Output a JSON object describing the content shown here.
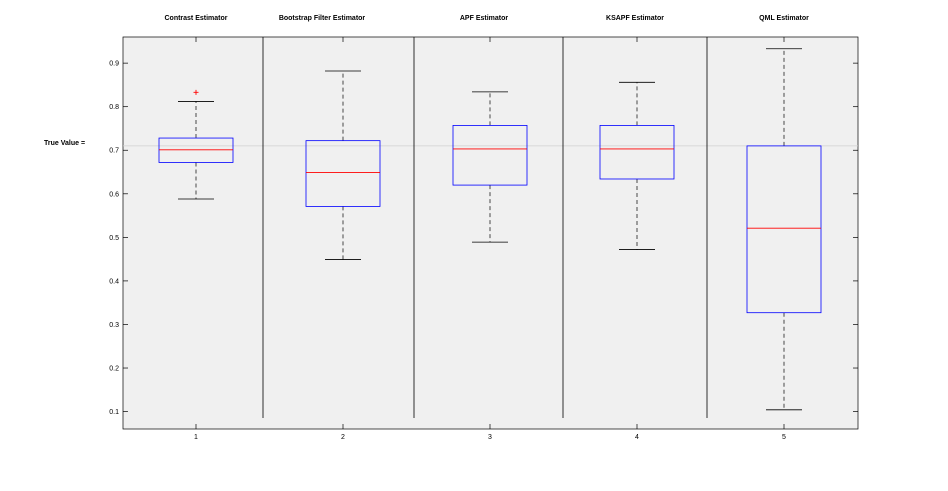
{
  "chart_data": {
    "type": "box",
    "true_value_label": "True Value =",
    "true_value": 0.71,
    "ylim": [
      0.06,
      0.96
    ],
    "yticks": [
      "0.1",
      "0.2",
      "0.3",
      "0.4",
      "0.5",
      "0.6",
      "0.7",
      "0.8",
      "0.9"
    ],
    "categories": [
      "1",
      "2",
      "3",
      "4",
      "5"
    ],
    "series": [
      {
        "title": "Contrast Estimator",
        "whisker_low": 0.588,
        "q1": 0.672,
        "median": 0.701,
        "q3": 0.728,
        "whisker_high": 0.812,
        "outliers": [
          0.833
        ]
      },
      {
        "title": "Bootstrap Filter Estimator",
        "whisker_low": 0.449,
        "q1": 0.571,
        "median": 0.649,
        "q3": 0.722,
        "whisker_high": 0.882,
        "outliers": []
      },
      {
        "title": "APF Estimator",
        "whisker_low": 0.489,
        "q1": 0.62,
        "median": 0.703,
        "q3": 0.757,
        "whisker_high": 0.834,
        "outliers": []
      },
      {
        "title": "KSAPF Estimator",
        "whisker_low": 0.472,
        "q1": 0.634,
        "median": 0.703,
        "q3": 0.757,
        "whisker_high": 0.856,
        "outliers": []
      },
      {
        "title": "QML Estimator",
        "whisker_low": 0.104,
        "q1": 0.327,
        "median": 0.521,
        "q3": 0.71,
        "whisker_high": 0.933,
        "outliers": []
      }
    ],
    "colors": {
      "box": "#0000ff",
      "median": "#ff0000",
      "whisker": "#000000",
      "outlier": "#ff0000",
      "plot_bg": "#f0f0f0",
      "true_line": "#d0d0d0"
    }
  }
}
